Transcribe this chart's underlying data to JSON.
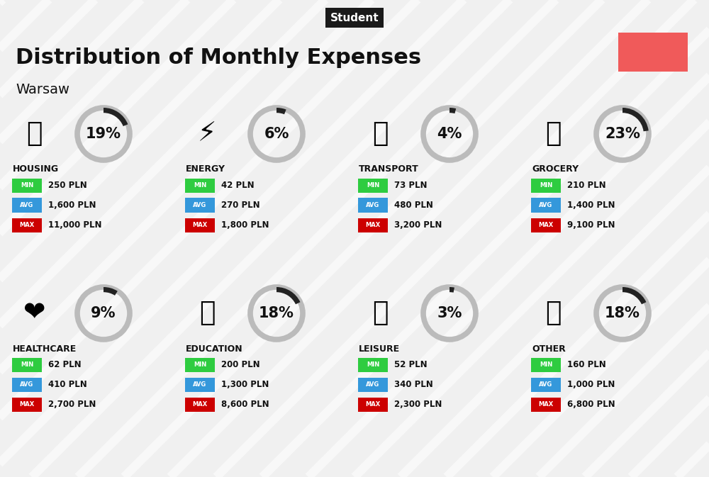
{
  "title": "Distribution of Monthly Expenses",
  "subtitle": "Warsaw",
  "tag": "Student",
  "tag_bg": "#1a1a1a",
  "tag_fg": "#ffffff",
  "bg_color": "#f0f0f0",
  "red_box_color": "#f05a5a",
  "categories": [
    {
      "name": "HOUSING",
      "pct": 19,
      "min": "250 PLN",
      "avg": "1,600 PLN",
      "max": "11,000 PLN",
      "emoji_key": "housing",
      "col": 0,
      "row": 0
    },
    {
      "name": "ENERGY",
      "pct": 6,
      "min": "42 PLN",
      "avg": "270 PLN",
      "max": "1,800 PLN",
      "emoji_key": "energy",
      "col": 1,
      "row": 0
    },
    {
      "name": "TRANSPORT",
      "pct": 4,
      "min": "73 PLN",
      "avg": "480 PLN",
      "max": "3,200 PLN",
      "emoji_key": "transport",
      "col": 2,
      "row": 0
    },
    {
      "name": "GROCERY",
      "pct": 23,
      "min": "210 PLN",
      "avg": "1,400 PLN",
      "max": "9,100 PLN",
      "emoji_key": "grocery",
      "col": 3,
      "row": 0
    },
    {
      "name": "HEALTHCARE",
      "pct": 9,
      "min": "62 PLN",
      "avg": "410 PLN",
      "max": "2,700 PLN",
      "emoji_key": "healthcare",
      "col": 0,
      "row": 1
    },
    {
      "name": "EDUCATION",
      "pct": 18,
      "min": "200 PLN",
      "avg": "1,300 PLN",
      "max": "8,600 PLN",
      "emoji_key": "education",
      "col": 1,
      "row": 1
    },
    {
      "name": "LEISURE",
      "pct": 3,
      "min": "52 PLN",
      "avg": "340 PLN",
      "max": "2,300 PLN",
      "emoji_key": "leisure",
      "col": 2,
      "row": 1
    },
    {
      "name": "OTHER",
      "pct": 18,
      "min": "160 PLN",
      "avg": "1,000 PLN",
      "max": "6,800 PLN",
      "emoji_key": "other",
      "col": 3,
      "row": 1
    }
  ],
  "min_color": "#2ecc40",
  "avg_color": "#3498db",
  "max_color": "#cc0000",
  "label_fg": "#ffffff",
  "pct_fontsize": 15,
  "cat_fontsize": 9,
  "val_fontsize": 8.5
}
